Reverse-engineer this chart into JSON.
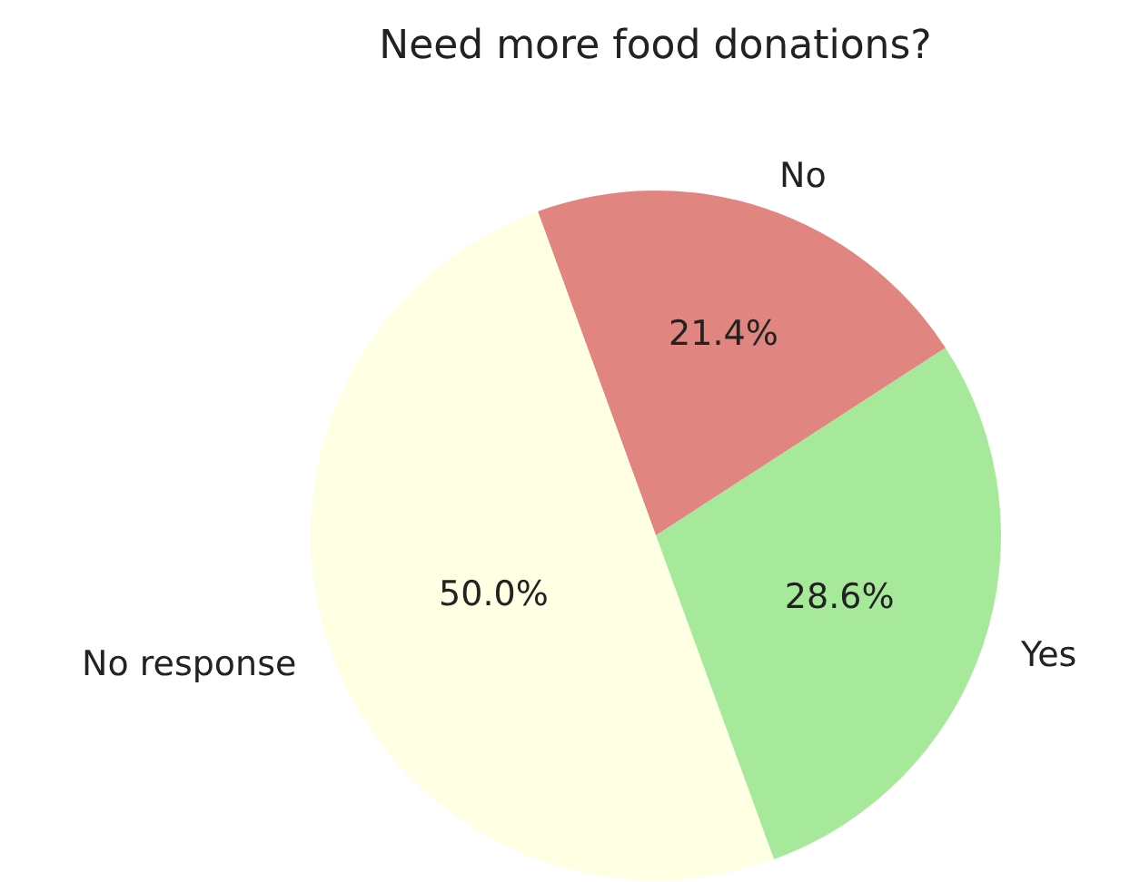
{
  "chart_data": {
    "type": "pie",
    "title": "Need more food donations?",
    "categories": [
      "Yes",
      "No",
      "No response"
    ],
    "values": [
      28.6,
      21.4,
      50.0
    ],
    "value_labels": [
      "28.6%",
      "21.4%",
      "50.0%"
    ],
    "colors": [
      "#a6e99a",
      "#e0857f",
      "#ffffe4"
    ],
    "legend": false
  }
}
